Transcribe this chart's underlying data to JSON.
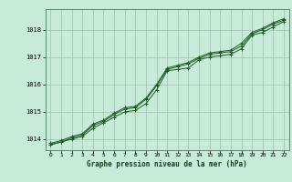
{
  "title": "Graphe pression niveau de la mer (hPa)",
  "background_color": "#c8ead8",
  "plot_bg_color": "#c8ead8",
  "grid_color": "#9dbdad",
  "line_color": "#1a5c22",
  "marker_color": "#1a5c22",
  "x_ticks": [
    0,
    1,
    2,
    3,
    4,
    5,
    6,
    7,
    8,
    9,
    10,
    11,
    12,
    13,
    14,
    15,
    16,
    17,
    18,
    19,
    20,
    21,
    22
  ],
  "xlim": [
    -0.5,
    22.5
  ],
  "ylim": [
    1013.6,
    1018.75
  ],
  "yticks": [
    1014,
    1015,
    1016,
    1017,
    1018
  ],
  "series": [
    {
      "x": [
        0,
        1,
        2,
        3,
        4,
        5,
        6,
        7,
        8,
        9,
        10,
        11,
        12,
        13,
        14,
        15,
        16,
        17,
        18,
        19,
        20,
        21,
        22
      ],
      "y": [
        1013.8,
        1013.9,
        1014.0,
        1014.1,
        1014.4,
        1014.6,
        1014.8,
        1015.0,
        1015.05,
        1015.3,
        1015.8,
        1016.5,
        1016.55,
        1016.6,
        1016.9,
        1017.0,
        1017.05,
        1017.1,
        1017.3,
        1017.8,
        1017.9,
        1018.1,
        1018.3
      ]
    },
    {
      "x": [
        0,
        1,
        2,
        3,
        4,
        5,
        6,
        7,
        8,
        9,
        10,
        11,
        12,
        13,
        14,
        15,
        16,
        17,
        18,
        19,
        20,
        21,
        22
      ],
      "y": [
        1013.8,
        1013.9,
        1014.05,
        1014.15,
        1014.5,
        1014.65,
        1014.9,
        1015.1,
        1015.15,
        1015.45,
        1015.95,
        1016.55,
        1016.65,
        1016.75,
        1016.95,
        1017.1,
        1017.15,
        1017.2,
        1017.4,
        1017.85,
        1018.0,
        1018.2,
        1018.35
      ]
    },
    {
      "x": [
        0,
        1,
        2,
        3,
        4,
        5,
        6,
        7,
        8,
        9,
        10,
        11,
        12,
        13,
        14,
        15,
        16,
        17,
        18,
        19,
        20,
        21,
        22
      ],
      "y": [
        1013.85,
        1013.95,
        1014.1,
        1014.2,
        1014.55,
        1014.7,
        1014.95,
        1015.15,
        1015.2,
        1015.5,
        1016.0,
        1016.6,
        1016.7,
        1016.8,
        1017.0,
        1017.15,
        1017.2,
        1017.25,
        1017.5,
        1017.9,
        1018.05,
        1018.25,
        1018.4
      ]
    }
  ]
}
